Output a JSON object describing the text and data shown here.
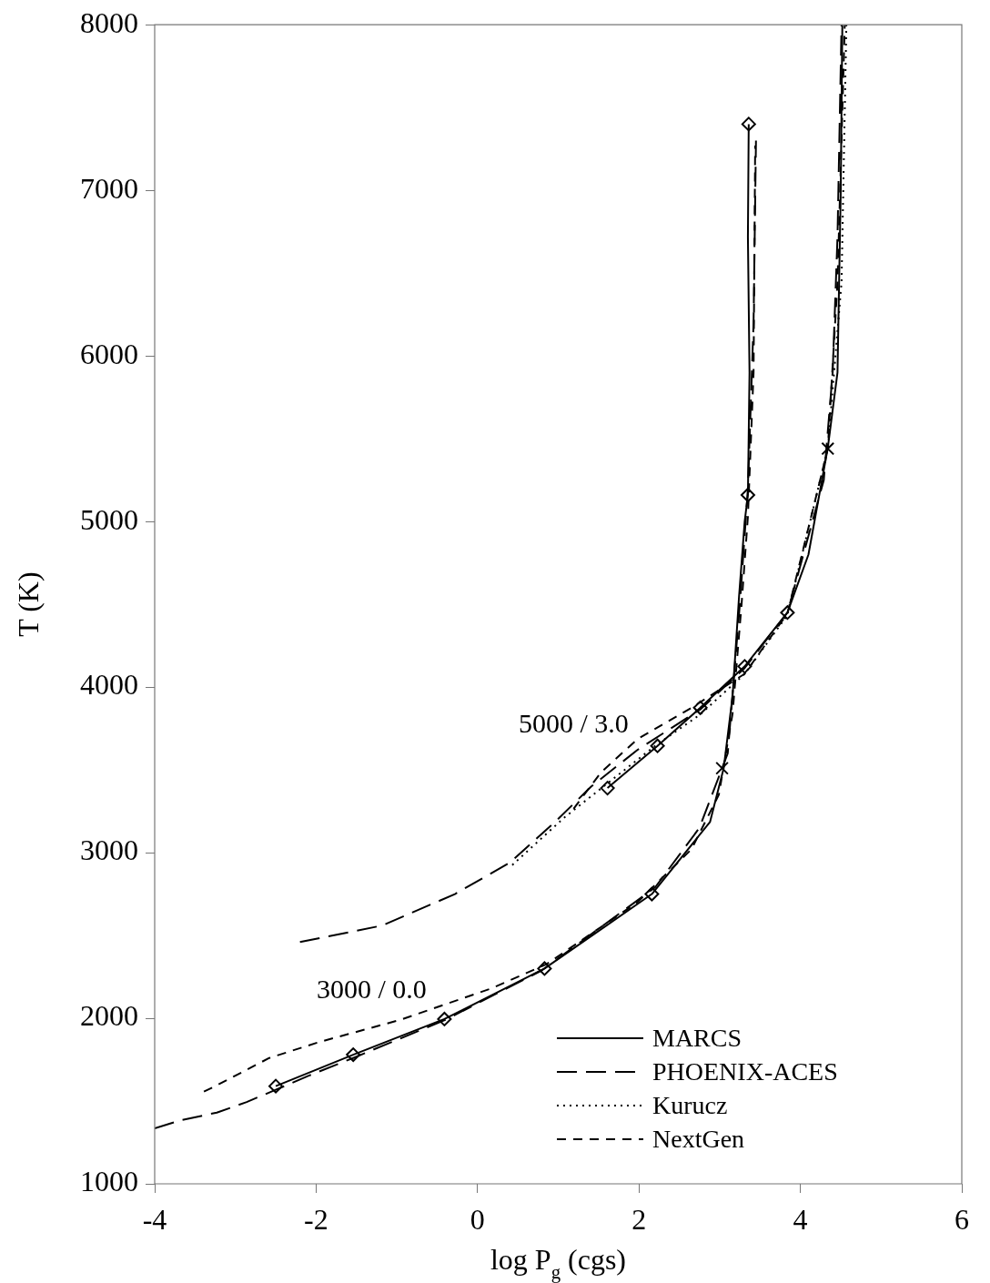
{
  "chart_data": {
    "type": "line",
    "xlabel": "log P$_{g}$ (cgs)",
    "ylabel": "T (K)",
    "xlim": [
      -4,
      6
    ],
    "xticks": [
      -4,
      -2,
      0,
      2,
      4,
      6
    ],
    "ylim": [
      1000,
      8000
    ],
    "yticks": [
      1000,
      2000,
      3000,
      4000,
      5000,
      6000,
      7000,
      8000
    ],
    "legend": "bottom right",
    "marker": "none",
    "annotations": [
      "5000 / 3.0",
      "3000 / 0.0"
    ],
    "series": [
      {
        "name": "MARCS",
        "color": "#000000",
        "line_style": "solid",
        "x": [
          -2.5,
          -1.54,
          -0.41,
          0.83,
          2.16,
          2.88,
          3.05,
          3.16,
          3.24,
          3.31,
          3.35,
          3.37,
          3.35,
          3.36
        ],
        "values": [
          1590,
          1780,
          1995,
          2300,
          2750,
          3185,
          3510,
          3945,
          4545,
          5000,
          5160,
          5900,
          6720,
          7400
        ]
      },
      {
        "name": "PHOENIX-ACES",
        "color": "#000000",
        "line_style": "dashed",
        "x": [
          -4,
          -3.67,
          -3.23,
          -2.86,
          -2.5,
          -2.09,
          -1.54,
          -0.4,
          0.8,
          2.2,
          2.75,
          3.1,
          3.25,
          3.35,
          3.42,
          3.45
        ],
        "values": [
          1335,
          1385,
          1430,
          1494,
          1568,
          1653,
          1760,
          1990,
          2290,
          2790,
          3150,
          3600,
          4500,
          5200,
          6200,
          7300
        ]
      },
      {
        "name": "Kurucz",
        "color": "#000000",
        "line_style": "dotted",
        "x": [
          0.43,
          1.07,
          1.64,
          2.2,
          2.76,
          3.31,
          3.84,
          4.34,
          4.51,
          4.57
        ],
        "values": [
          2925,
          3210,
          3430,
          3645,
          3835,
          4080,
          4435,
          5440,
          6445,
          8000
        ]
      },
      {
        "name": "NextGen",
        "color": "#000000",
        "line_style": "shortdash",
        "x": [
          -3.39,
          -3.25,
          -2.58,
          -1.97,
          -0.96,
          0.17,
          0.85,
          1.98,
          2.65,
          2.99,
          3.16,
          3.27,
          3.35,
          3.42,
          3.44
        ],
        "values": [
          1557,
          1590,
          1760,
          1855,
          1990,
          2180,
          2325,
          2700,
          3020,
          3350,
          3840,
          4490,
          5030,
          5900,
          7270
        ]
      },
      {
        "color": "#000000",
        "line_style": "solid",
        "x": [
          1.61,
          2.23,
          2.76,
          3.31,
          3.84,
          4.1,
          4.34,
          4.46,
          4.5,
          4.52
        ],
        "values": [
          3390,
          3645,
          3875,
          4125,
          4450,
          4800,
          5445,
          5900,
          6990,
          8000
        ]
      },
      {
        "color": "#000000",
        "line_style": "dashed",
        "x": [
          -2.2,
          -1.18,
          -0.28,
          0.4,
          0.96,
          1.41,
          1.98,
          2.76,
          3.31,
          3.84,
          4.29,
          4.4,
          4.46,
          4.51
        ],
        "values": [
          2460,
          2560,
          2750,
          2940,
          3185,
          3400,
          3620,
          3865,
          4115,
          4450,
          5250,
          5900,
          6720,
          8000
        ]
      },
      {
        "color": "#000000",
        "line_style": "shortdash",
        "x": [
          1.19,
          1.53,
          1.98,
          2.65,
          3.31,
          3.84,
          4.34,
          4.46,
          4.55
        ],
        "values": [
          3265,
          3485,
          3685,
          3875,
          4080,
          4445,
          5440,
          6445,
          8000
        ]
      },
      {
        "type": "scatter",
        "color": "#000000",
        "marker": "diamond",
        "x": [
          -2.5,
          -1.54,
          -0.41,
          0.83,
          2.16,
          3.35,
          3.36,
          1.61,
          2.23,
          2.76,
          3.31,
          3.84
        ],
        "values": [
          1590,
          1780,
          1995,
          2300,
          2750,
          5160,
          7400,
          3390,
          3645,
          3875,
          4125,
          4450
        ]
      },
      {
        "type": "scatter",
        "color": "#000000",
        "marker": "cross",
        "x": [
          3.03,
          4.34
        ],
        "values": [
          3510,
          5440
        ]
      }
    ]
  }
}
